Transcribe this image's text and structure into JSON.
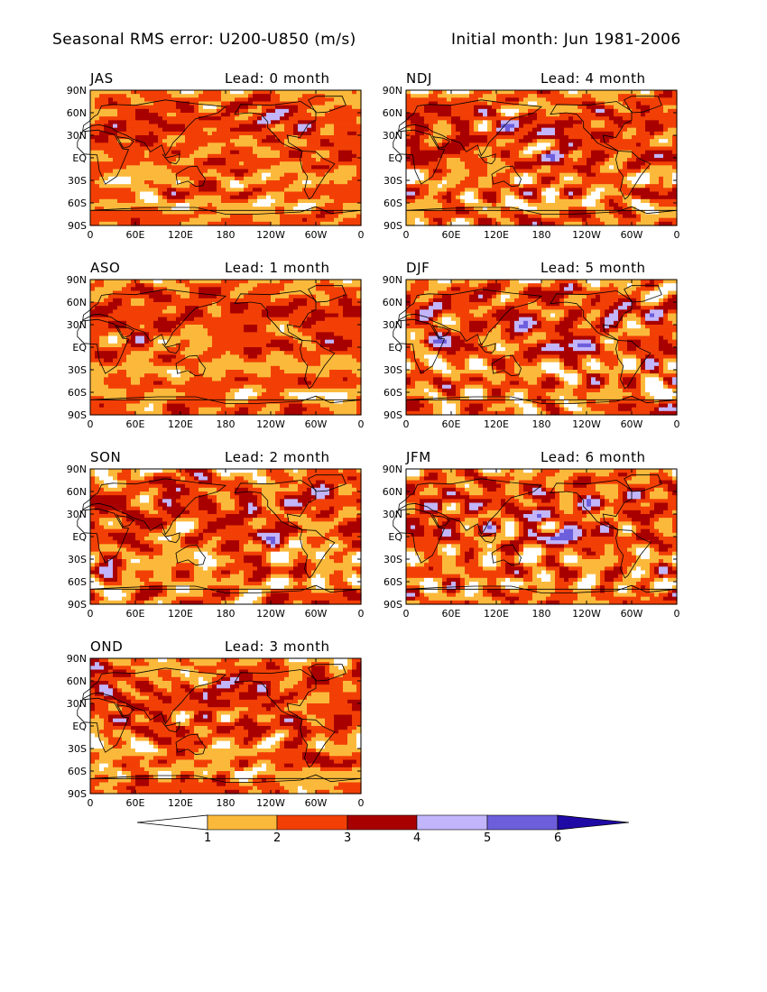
{
  "header": {
    "title": "Seasonal RMS error: U200-U850 (m/s)",
    "subtitle": "Initial month: Jun 1981-2006"
  },
  "axes": {
    "lat_ticks": [
      "90N",
      "60N",
      "30N",
      "EQ",
      "30S",
      "60S",
      "90S"
    ],
    "lon_ticks": [
      "0",
      "60E",
      "120E",
      "180",
      "120W",
      "60W",
      "0"
    ]
  },
  "panels": [
    {
      "season": "JAS",
      "lead": "Lead: 0 month",
      "intensity": 0
    },
    {
      "season": "NDJ",
      "lead": "Lead: 4 month",
      "intensity": 4
    },
    {
      "season": "ASO",
      "lead": "Lead: 1 month",
      "intensity": 1
    },
    {
      "season": "DJF",
      "lead": "Lead: 5 month",
      "intensity": 5
    },
    {
      "season": "SON",
      "lead": "Lead: 2 month",
      "intensity": 2
    },
    {
      "season": "JFM",
      "lead": "Lead: 6 month",
      "intensity": 6
    },
    {
      "season": "OND",
      "lead": "Lead: 3 month",
      "intensity": 3
    }
  ],
  "colorbar": {
    "labels": [
      "1",
      "2",
      "3",
      "4",
      "5",
      "6"
    ],
    "colors": [
      "#ffffff",
      "#fbb93b",
      "#f23f05",
      "#a80000",
      "#c2b5fb",
      "#6d5fdb",
      "#1f0aa6"
    ]
  }
}
